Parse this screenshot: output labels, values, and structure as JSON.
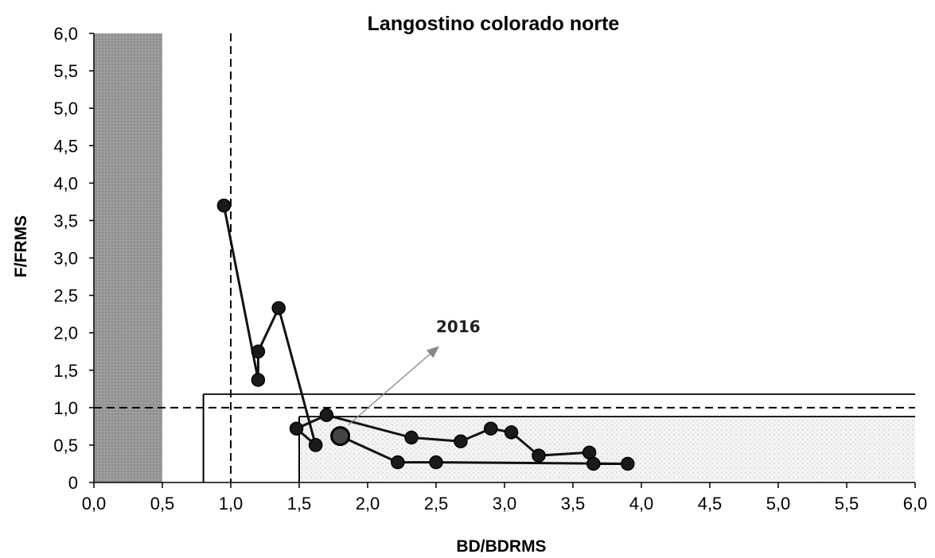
{
  "chart_data": {
    "type": "scatter",
    "title": "Langostino colorado norte",
    "xlabel": "BD/BDRMS",
    "ylabel": "F/FRMS",
    "xlim": [
      0,
      6
    ],
    "ylim": [
      0,
      6
    ],
    "x_ticks": [
      "0,0",
      "0,5",
      "1,0",
      "1,5",
      "2,0",
      "2,5",
      "3,0",
      "3,5",
      "4,0",
      "4,5",
      "5,0",
      "5,5",
      "6,0"
    ],
    "y_ticks": [
      "0",
      "0,5",
      "1,0",
      "1,5",
      "2,0",
      "2,5",
      "3,0",
      "3,5",
      "4,0",
      "4,5",
      "5,0",
      "5,5",
      "6,0"
    ],
    "grid": false,
    "legend": "none",
    "reference_lines": {
      "f_target": 1.0,
      "b_target": 1.0,
      "f_upper": 1.18,
      "f_lower": 0.88,
      "b_lower": 0.8,
      "b_right": 1.5
    },
    "collapse_zone": [
      0,
      0.5
    ],
    "series": [
      {
        "x": [
          0.95,
          1.2,
          1.2,
          1.35,
          1.62,
          1.62,
          1.48,
          1.7,
          2.32,
          2.68,
          2.9,
          3.05,
          3.25,
          3.62,
          3.65,
          3.9,
          2.5,
          2.22,
          1.8
        ],
        "y": [
          3.7,
          1.37,
          1.75,
          2.33,
          0.5,
          0.5,
          0.72,
          0.9,
          0.6,
          0.55,
          0.72,
          0.67,
          0.36,
          0.4,
          0.25,
          0.25,
          0.27,
          0.27,
          0.62
        ]
      }
    ],
    "annotations": [
      {
        "text": "2016",
        "x": 1.8,
        "y": 0.62
      }
    ],
    "colors": {
      "line": "#111111",
      "marker": "#1a1a1a",
      "collapse_fill": "#9a9a9a",
      "safe_zone_fill": "#eeeeee",
      "arrow": "#888888"
    }
  }
}
